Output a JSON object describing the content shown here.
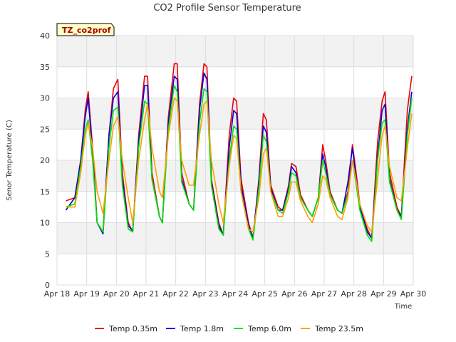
{
  "chart_data": {
    "type": "line",
    "title": "CO2 Profile Sensor Temperature",
    "xlabel": "Time",
    "ylabel": "Senor Temperature (C)",
    "site_label": "TZ_co2prof",
    "ylim": [
      0,
      40
    ],
    "yticks": [
      "0",
      "5",
      "10",
      "15",
      "20",
      "25",
      "30",
      "35",
      "40"
    ],
    "xlim_days": [
      0,
      12
    ],
    "xticks": [
      "Apr 18",
      "Apr 19",
      "Apr 20",
      "Apr 21",
      "Apr 22",
      "Apr 23",
      "Apr 24",
      "Apr 25",
      "Apr 26",
      "Apr 27",
      "Apr 28",
      "Apr 29",
      "Apr 30"
    ],
    "grid": true,
    "legend_position": "bottom",
    "series": [
      {
        "name": "Temp 0.35m",
        "color": "#e8000b",
        "points": [
          [
            0.3,
            13.5
          ],
          [
            0.6,
            14
          ],
          [
            0.8,
            20
          ],
          [
            0.95,
            28
          ],
          [
            1.05,
            31
          ],
          [
            1.2,
            22
          ],
          [
            1.35,
            10
          ],
          [
            1.55,
            8.5
          ],
          [
            1.75,
            24
          ],
          [
            1.9,
            31.5
          ],
          [
            2.05,
            33
          ],
          [
            2.2,
            18
          ],
          [
            2.4,
            10
          ],
          [
            2.55,
            8.5
          ],
          [
            2.75,
            24
          ],
          [
            2.95,
            33.5
          ],
          [
            3.05,
            33.5
          ],
          [
            3.2,
            18
          ],
          [
            3.45,
            11
          ],
          [
            3.55,
            10
          ],
          [
            3.75,
            27
          ],
          [
            3.95,
            35.5
          ],
          [
            4.05,
            35.5
          ],
          [
            4.2,
            18
          ],
          [
            4.45,
            13
          ],
          [
            4.6,
            12
          ],
          [
            4.8,
            29
          ],
          [
            4.95,
            35.5
          ],
          [
            5.05,
            35
          ],
          [
            5.2,
            17
          ],
          [
            5.45,
            10
          ],
          [
            5.6,
            8
          ],
          [
            5.8,
            24
          ],
          [
            5.95,
            30
          ],
          [
            6.05,
            29.5
          ],
          [
            6.2,
            17
          ],
          [
            6.45,
            10
          ],
          [
            6.6,
            7.5
          ],
          [
            6.8,
            17
          ],
          [
            6.95,
            27.5
          ],
          [
            7.05,
            26.5
          ],
          [
            7.2,
            16
          ],
          [
            7.45,
            12.5
          ],
          [
            7.6,
            12
          ],
          [
            7.8,
            16
          ],
          [
            7.9,
            19.5
          ],
          [
            8.05,
            19
          ],
          [
            8.2,
            14.5
          ],
          [
            8.45,
            12
          ],
          [
            8.6,
            11
          ],
          [
            8.8,
            14
          ],
          [
            8.95,
            22.5
          ],
          [
            9.05,
            20
          ],
          [
            9.2,
            15
          ],
          [
            9.45,
            12
          ],
          [
            9.6,
            11.5
          ],
          [
            9.8,
            15
          ],
          [
            9.95,
            22.5
          ],
          [
            10.05,
            19
          ],
          [
            10.2,
            13
          ],
          [
            10.45,
            9
          ],
          [
            10.6,
            7.5
          ],
          [
            10.8,
            23
          ],
          [
            10.95,
            29.5
          ],
          [
            11.05,
            31
          ],
          [
            11.2,
            18
          ],
          [
            11.45,
            12.5
          ],
          [
            11.6,
            11
          ],
          [
            11.8,
            28
          ],
          [
            11.95,
            33.5
          ]
        ]
      },
      {
        "name": "Temp 1.8m",
        "color": "#0a00d8",
        "points": [
          [
            0.3,
            12
          ],
          [
            0.6,
            14
          ],
          [
            0.8,
            20
          ],
          [
            0.95,
            27
          ],
          [
            1.05,
            30
          ],
          [
            1.2,
            21
          ],
          [
            1.35,
            10
          ],
          [
            1.55,
            8.2
          ],
          [
            1.75,
            24
          ],
          [
            1.9,
            30
          ],
          [
            2.05,
            31
          ],
          [
            2.2,
            17
          ],
          [
            2.4,
            9.5
          ],
          [
            2.55,
            8.7
          ],
          [
            2.75,
            23
          ],
          [
            2.95,
            32
          ],
          [
            3.05,
            32
          ],
          [
            3.2,
            17
          ],
          [
            3.45,
            11
          ],
          [
            3.55,
            10
          ],
          [
            3.75,
            26
          ],
          [
            3.95,
            33.5
          ],
          [
            4.05,
            33
          ],
          [
            4.2,
            17
          ],
          [
            4.45,
            13
          ],
          [
            4.6,
            12
          ],
          [
            4.8,
            28
          ],
          [
            4.95,
            34
          ],
          [
            5.05,
            33
          ],
          [
            5.2,
            16.5
          ],
          [
            5.45,
            9.5
          ],
          [
            5.6,
            8
          ],
          [
            5.8,
            22
          ],
          [
            5.95,
            28
          ],
          [
            6.05,
            27.5
          ],
          [
            6.2,
            16
          ],
          [
            6.45,
            9.5
          ],
          [
            6.6,
            7.5
          ],
          [
            6.8,
            16.5
          ],
          [
            6.95,
            25.5
          ],
          [
            7.05,
            24.5
          ],
          [
            7.2,
            15.5
          ],
          [
            7.45,
            12
          ],
          [
            7.6,
            12
          ],
          [
            7.8,
            15.5
          ],
          [
            7.9,
            19
          ],
          [
            8.05,
            18
          ],
          [
            8.2,
            14
          ],
          [
            8.45,
            12
          ],
          [
            8.6,
            11
          ],
          [
            8.8,
            14
          ],
          [
            8.95,
            21
          ],
          [
            9.05,
            19
          ],
          [
            9.2,
            14.5
          ],
          [
            9.45,
            12
          ],
          [
            9.6,
            11.5
          ],
          [
            9.8,
            16.5
          ],
          [
            9.95,
            22
          ],
          [
            10.05,
            18
          ],
          [
            10.2,
            12.5
          ],
          [
            10.45,
            8.5
          ],
          [
            10.6,
            7.5
          ],
          [
            10.8,
            20.5
          ],
          [
            10.95,
            28
          ],
          [
            11.05,
            29
          ],
          [
            11.2,
            17
          ],
          [
            11.45,
            12
          ],
          [
            11.6,
            11
          ],
          [
            11.8,
            25
          ],
          [
            11.95,
            31
          ]
        ]
      },
      {
        "name": "Temp 6.0m",
        "color": "#00e400",
        "points": [
          [
            0.3,
            12.5
          ],
          [
            0.6,
            13
          ],
          [
            0.8,
            19
          ],
          [
            0.95,
            25
          ],
          [
            1.05,
            26.5
          ],
          [
            1.2,
            20
          ],
          [
            1.35,
            10
          ],
          [
            1.55,
            8.5
          ],
          [
            1.75,
            22
          ],
          [
            1.9,
            28
          ],
          [
            2.05,
            28.5
          ],
          [
            2.2,
            16
          ],
          [
            2.4,
            9
          ],
          [
            2.55,
            8.5
          ],
          [
            2.75,
            22
          ],
          [
            2.95,
            29.5
          ],
          [
            3.05,
            29
          ],
          [
            3.2,
            17
          ],
          [
            3.45,
            11
          ],
          [
            3.55,
            10
          ],
          [
            3.75,
            25
          ],
          [
            3.95,
            32
          ],
          [
            4.05,
            31
          ],
          [
            4.2,
            16.5
          ],
          [
            4.45,
            13
          ],
          [
            4.6,
            12
          ],
          [
            4.8,
            26
          ],
          [
            4.95,
            31.5
          ],
          [
            5.05,
            31
          ],
          [
            5.2,
            16
          ],
          [
            5.45,
            9
          ],
          [
            5.6,
            8
          ],
          [
            5.8,
            20
          ],
          [
            5.95,
            25.5
          ],
          [
            6.05,
            25
          ],
          [
            6.2,
            15
          ],
          [
            6.45,
            9
          ],
          [
            6.6,
            7.2
          ],
          [
            6.8,
            15.5
          ],
          [
            6.95,
            24
          ],
          [
            7.05,
            23
          ],
          [
            7.2,
            15
          ],
          [
            7.45,
            12
          ],
          [
            7.6,
            11.5
          ],
          [
            7.8,
            15
          ],
          [
            7.9,
            18
          ],
          [
            8.05,
            17.5
          ],
          [
            8.2,
            14
          ],
          [
            8.45,
            12
          ],
          [
            8.6,
            11
          ],
          [
            8.8,
            14
          ],
          [
            8.95,
            20
          ],
          [
            9.05,
            18
          ],
          [
            9.2,
            14.5
          ],
          [
            9.45,
            12
          ],
          [
            9.6,
            11.5
          ],
          [
            9.8,
            14.5
          ],
          [
            9.95,
            20
          ],
          [
            10.05,
            17
          ],
          [
            10.2,
            12
          ],
          [
            10.45,
            8
          ],
          [
            10.6,
            7
          ],
          [
            10.8,
            20
          ],
          [
            10.95,
            26
          ],
          [
            11.05,
            26.5
          ],
          [
            11.2,
            16.5
          ],
          [
            11.45,
            12
          ],
          [
            11.6,
            10.5
          ],
          [
            11.8,
            24
          ],
          [
            11.95,
            30
          ]
        ]
      },
      {
        "name": "Temp 23.5m",
        "color": "#ffa000",
        "points": [
          [
            0.3,
            12.5
          ],
          [
            0.6,
            12.5
          ],
          [
            0.8,
            18
          ],
          [
            0.95,
            24
          ],
          [
            1.05,
            26
          ],
          [
            1.2,
            22
          ],
          [
            1.35,
            15
          ],
          [
            1.55,
            11.5
          ],
          [
            1.75,
            20
          ],
          [
            1.9,
            25.5
          ],
          [
            2.05,
            27
          ],
          [
            2.2,
            20
          ],
          [
            2.4,
            14
          ],
          [
            2.55,
            10
          ],
          [
            2.75,
            20
          ],
          [
            2.95,
            26.5
          ],
          [
            3.05,
            29
          ],
          [
            3.2,
            22
          ],
          [
            3.45,
            15
          ],
          [
            3.55,
            14
          ],
          [
            3.75,
            24
          ],
          [
            3.95,
            30
          ],
          [
            4.05,
            29.5
          ],
          [
            4.2,
            20
          ],
          [
            4.45,
            16
          ],
          [
            4.6,
            16
          ],
          [
            4.8,
            24
          ],
          [
            4.95,
            29
          ],
          [
            5.05,
            29.5
          ],
          [
            5.2,
            20
          ],
          [
            5.45,
            13
          ],
          [
            5.6,
            10
          ],
          [
            5.8,
            19
          ],
          [
            5.95,
            24
          ],
          [
            6.05,
            23.5
          ],
          [
            6.2,
            15
          ],
          [
            6.45,
            9
          ],
          [
            6.6,
            8.5
          ],
          [
            6.8,
            14
          ],
          [
            6.95,
            21
          ],
          [
            7.05,
            22
          ],
          [
            7.2,
            15
          ],
          [
            7.45,
            11
          ],
          [
            7.6,
            11
          ],
          [
            7.8,
            14
          ],
          [
            7.9,
            16.5
          ],
          [
            8.05,
            16.5
          ],
          [
            8.2,
            13.5
          ],
          [
            8.45,
            11
          ],
          [
            8.6,
            10
          ],
          [
            8.8,
            13
          ],
          [
            8.95,
            17.5
          ],
          [
            9.05,
            17
          ],
          [
            9.2,
            14
          ],
          [
            9.45,
            11
          ],
          [
            9.6,
            10.5
          ],
          [
            9.8,
            14
          ],
          [
            9.95,
            20
          ],
          [
            10.05,
            17.5
          ],
          [
            10.2,
            13
          ],
          [
            10.45,
            9.5
          ],
          [
            10.6,
            8.5
          ],
          [
            10.8,
            17
          ],
          [
            10.95,
            24
          ],
          [
            11.05,
            25.5
          ],
          [
            11.2,
            19
          ],
          [
            11.45,
            14
          ],
          [
            11.6,
            13.5
          ],
          [
            11.8,
            22
          ],
          [
            11.95,
            27.5
          ]
        ]
      }
    ]
  }
}
